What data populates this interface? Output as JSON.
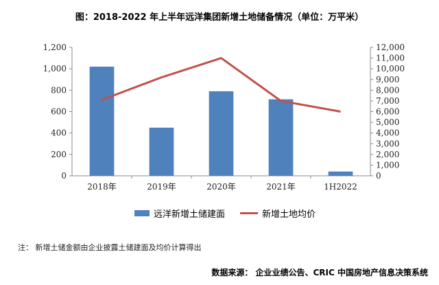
{
  "title": "图：2018-2022 年上半年远洋集团新增土地储备情况（单位：万平米）",
  "note": "注：  新增土储金额由企业披露土储建面及均价计算得出",
  "source": "数据来源：  企业业绩公告、CRIC 中国房地产信息决策系统",
  "colors": {
    "bar": "#4f81bd",
    "line": "#c0504d"
  },
  "chart_data": {
    "type": "bar",
    "categories": [
      "2018年",
      "2019年",
      "2020年",
      "2021年",
      "1H2022"
    ],
    "series": [
      {
        "name": "远洋新增土储建面",
        "type": "bar",
        "axis": "left",
        "values": [
          1020,
          450,
          790,
          715,
          40
        ]
      },
      {
        "name": "新增土地均价",
        "type": "line",
        "axis": "right",
        "values": [
          7100,
          9200,
          11000,
          7000,
          6000
        ]
      }
    ],
    "y_left": {
      "lim": [
        0,
        1200
      ],
      "ticks": [
        "0",
        "200",
        "400",
        "600",
        "800",
        "1,000",
        "1,200"
      ]
    },
    "y_right": {
      "lim": [
        0,
        12000
      ],
      "ticks": [
        "0",
        "1,000",
        "2,000",
        "3,000",
        "4,000",
        "5,000",
        "6,000",
        "7,000",
        "8,000",
        "9,000",
        "10,000",
        "11,000",
        "12,000"
      ]
    },
    "grid": false,
    "legend": "bottom"
  }
}
